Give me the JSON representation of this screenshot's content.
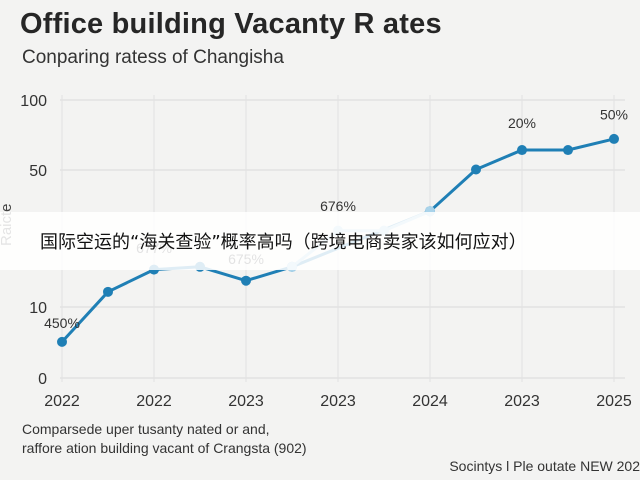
{
  "chart_data": {
    "type": "line",
    "title": "Office building Vacanty R ates",
    "subtitle": "Conparing ratess of Changisha",
    "ylabel": "Raicte",
    "xlabel": "",
    "y_ticks": [
      "100",
      "50",
      "10",
      "0"
    ],
    "x_tick_labels": [
      "2022",
      "2022",
      "2023",
      "2023",
      "2024",
      "2023",
      "2025"
    ],
    "ylim": [
      0,
      100
    ],
    "grid": true,
    "series": [
      {
        "color": "#1f7fb5",
        "values": [
          {
            "x": 0.0,
            "y": 13
          },
          {
            "x": 0.5,
            "y": 31
          },
          {
            "x": 1.0,
            "y": 39
          },
          {
            "x": 1.5,
            "y": 40
          },
          {
            "x": 2.0,
            "y": 35
          },
          {
            "x": 2.5,
            "y": 40
          },
          {
            "x": 4.0,
            "y": 60
          },
          {
            "x": 4.5,
            "y": 75
          },
          {
            "x": 5.0,
            "y": 82
          },
          {
            "x": 5.5,
            "y": 82
          },
          {
            "x": 6.0,
            "y": 86
          }
        ]
      },
      {
        "color": "#a9d3ea",
        "values": [
          {
            "x": 2.5,
            "y": 40
          },
          {
            "x": 3.0,
            "y": 53
          },
          {
            "x": 3.5,
            "y": 53
          },
          {
            "x": 4.0,
            "y": 60
          }
        ]
      }
    ],
    "annotations": [
      {
        "text": "450%",
        "x": 0.0,
        "y": 18
      },
      {
        "text": "677%",
        "x": 1.0,
        "y": 45
      },
      {
        "text": "675%",
        "x": 2.0,
        "y": 41
      },
      {
        "text": "676%",
        "x": 3.0,
        "y": 60
      },
      {
        "text": "20%",
        "x": 5.0,
        "y": 90
      },
      {
        "text": "50%",
        "x": 6.0,
        "y": 93
      }
    ]
  },
  "footnote": {
    "line1": "Comparsede uper tusanty nated or and,",
    "line2": "raffore ation building vacant of Crangsta (902)"
  },
  "source": "Socintys l Ple outate NEW 202",
  "overlay_caption": "国际空运的“海关查验”概率高吗（跨境电商卖家该如何应对）"
}
